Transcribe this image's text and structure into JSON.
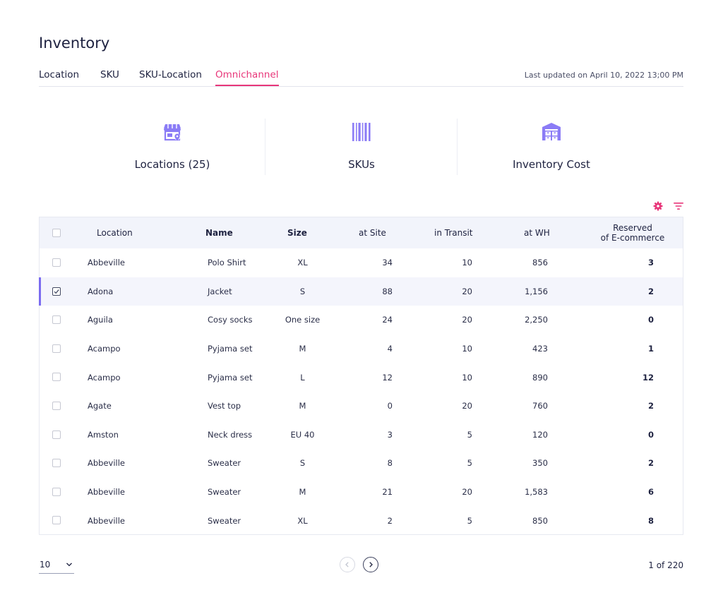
{
  "page": {
    "title": "Inventory"
  },
  "tabs": [
    {
      "label": "Location",
      "active": false
    },
    {
      "label": "SKU",
      "active": false
    },
    {
      "label": "SKU-Location",
      "active": false
    },
    {
      "label": "Omnichannel",
      "active": true
    }
  ],
  "last_updated": "Last updated on April 10, 2022 13;00 PM",
  "summary": [
    {
      "icon": "store-location-icon",
      "label": "Locations (25)"
    },
    {
      "icon": "barcode-icon",
      "label": "SKUs"
    },
    {
      "icon": "warehouse-icon",
      "label": "Inventory Cost"
    }
  ],
  "toolbar": {
    "settings_icon": "gear-icon",
    "filter_icon": "filter-icon"
  },
  "colors": {
    "accent": "#e8377a",
    "icon": "#8b7cf6",
    "selected_bar": "#7b6cf0"
  },
  "table": {
    "columns": {
      "location": "Location",
      "name": "Name",
      "size": "Size",
      "at_site": "at Site",
      "in_transit": "in Transit",
      "at_wh": "at WH",
      "reserved_line1": "Reserved",
      "reserved_line2": "of E-commerce"
    },
    "rows": [
      {
        "location": "Abbeville",
        "name": "Polo Shirt",
        "size": "XL",
        "at_site": "34",
        "in_transit": "10",
        "at_wh": "856",
        "reserved": "3",
        "checked": false
      },
      {
        "location": "Adona",
        "name": "Jacket",
        "size": "S",
        "at_site": "88",
        "in_transit": "20",
        "at_wh": "1,156",
        "reserved": "2",
        "checked": true
      },
      {
        "location": "Aguila",
        "name": "Cosy socks",
        "size": "One size",
        "at_site": "24",
        "in_transit": "20",
        "at_wh": "2,250",
        "reserved": "0",
        "checked": false
      },
      {
        "location": "Acampo",
        "name": "Pyjama set",
        "size": "M",
        "at_site": "4",
        "in_transit": "10",
        "at_wh": "423",
        "reserved": "1",
        "checked": false
      },
      {
        "location": "Acampo",
        "name": "Pyjama set",
        "size": "L",
        "at_site": "12",
        "in_transit": "10",
        "at_wh": "890",
        "reserved": "12",
        "checked": false
      },
      {
        "location": "Agate",
        "name": "Vest top",
        "size": "M",
        "at_site": "0",
        "in_transit": "20",
        "at_wh": "760",
        "reserved": "2",
        "checked": false
      },
      {
        "location": "Amston",
        "name": "Neck dress",
        "size": "EU 40",
        "at_site": "3",
        "in_transit": "5",
        "at_wh": "120",
        "reserved": "0",
        "checked": false
      },
      {
        "location": "Abbeville",
        "name": "Sweater",
        "size": "S",
        "at_site": "8",
        "in_transit": "5",
        "at_wh": "350",
        "reserved": "2",
        "checked": false
      },
      {
        "location": "Abbeville",
        "name": "Sweater",
        "size": "M",
        "at_site": "21",
        "in_transit": "20",
        "at_wh": "1,583",
        "reserved": "6",
        "checked": false
      },
      {
        "location": "Abbeville",
        "name": "Sweater",
        "size": "XL",
        "at_site": "2",
        "in_transit": "5",
        "at_wh": "850",
        "reserved": "8",
        "checked": false
      }
    ]
  },
  "pagination": {
    "page_size": "10",
    "page_info": "1 of 220",
    "prev_icon": "chevron-left-icon",
    "next_icon": "chevron-right-icon"
  }
}
